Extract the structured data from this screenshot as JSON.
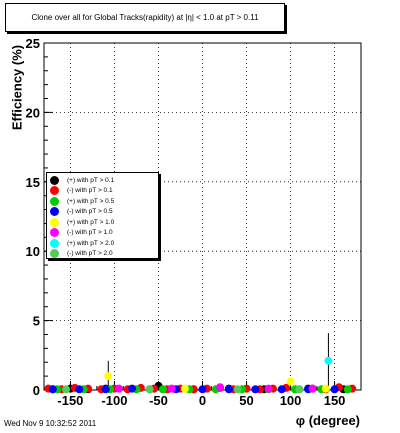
{
  "title": "Clone  over all for Global Tracks(rapidity)  at |η| < 1.0 at pT > 0.11",
  "footer": "Wed Nov  9 10:32:52 2011",
  "chart_data": {
    "type": "scatter",
    "xlabel": "φ (degree)",
    "ylabel": "Efficiency (%)",
    "xlim": [
      -180,
      180
    ],
    "ylim": [
      0,
      25
    ],
    "xticks": [
      -150,
      -100,
      -50,
      0,
      50,
      100,
      150
    ],
    "xtick_labels": [
      "-150",
      "-100",
      "-50",
      "0",
      "50",
      "100",
      "150"
    ],
    "yticks": [
      0,
      5,
      10,
      15,
      20,
      25
    ],
    "ytick_labels": [
      "0",
      "5",
      "10",
      "15",
      "20",
      "25"
    ],
    "grid": true,
    "legend_position": "left-middle",
    "series": [
      {
        "name": "(+) with pT > 0.1",
        "color": "#000000",
        "x": [
          -170,
          -150,
          -130,
          -110,
          -50,
          -10,
          30,
          70,
          120,
          160
        ],
        "y": [
          0.05,
          0.1,
          0.05,
          0.1,
          0.3,
          0.05,
          0.1,
          0.05,
          0.1,
          0.05
        ]
      },
      {
        "name": "(-) with pT > 0.1",
        "color": "#ff0000",
        "x": [
          -175,
          -160,
          -145,
          -130,
          -115,
          -100,
          -85,
          -70,
          -55,
          -40,
          -25,
          -10,
          5,
          20,
          35,
          50,
          65,
          80,
          95,
          110,
          125,
          140,
          155,
          170
        ],
        "y": [
          0.1,
          0.05,
          0.15,
          0.1,
          0.05,
          0.1,
          0.05,
          0.15,
          0.1,
          0.05,
          0.1,
          0.05,
          0.1,
          0.15,
          0.05,
          0.1,
          0.05,
          0.1,
          0.15,
          0.05,
          0.1,
          0.05,
          0.2,
          0.1
        ]
      },
      {
        "name": "(+) with pT > 0.5",
        "color": "#00cc00",
        "x": [
          -165,
          -135,
          -105,
          -75,
          -45,
          -15,
          15,
          45,
          75,
          105,
          135,
          165
        ],
        "y": [
          0.05,
          0.05,
          0.05,
          0.05,
          0.05,
          0.05,
          0.05,
          0.05,
          0.05,
          0.05,
          0.05,
          0.05
        ]
      },
      {
        "name": "(-) with pT > 0.5",
        "color": "#0000ff",
        "x": [
          -170,
          -140,
          -110,
          -80,
          -60,
          -30,
          0,
          30,
          60,
          90,
          120,
          150
        ],
        "y": [
          0.05,
          0.05,
          0.05,
          0.1,
          0.05,
          0.05,
          0.05,
          0.05,
          0.05,
          0.05,
          0.05,
          0.05
        ]
      },
      {
        "name": "(+) with pT > 1.0",
        "color": "#ffff00",
        "x": [
          -107,
          -20,
          100,
          140
        ],
        "y": [
          1.0,
          0.1,
          0.6,
          0.1
        ]
      },
      {
        "name": "(-) with pT > 1.0",
        "color": "#ff00ff",
        "x": [
          -95,
          -35,
          20,
          75,
          125
        ],
        "y": [
          0.1,
          0.1,
          0.2,
          0.1,
          0.1
        ]
      },
      {
        "name": "(+) with pT > 2.0",
        "color": "#00ffff",
        "x": [
          143
        ],
        "y": [
          2.1
        ]
      },
      {
        "name": "(-) with pT > 2.0",
        "color": "#55cc55",
        "x": [
          -155,
          -60,
          40,
          110
        ],
        "y": [
          0.05,
          0.05,
          0.05,
          0.05
        ]
      }
    ],
    "errors": [
      {
        "x": [
          -107
        ],
        "low": [
          0.0
        ],
        "high": [
          2.1
        ]
      },
      {
        "x": [
          143
        ],
        "low": [
          0.0
        ],
        "high": [
          4.1
        ]
      }
    ]
  }
}
